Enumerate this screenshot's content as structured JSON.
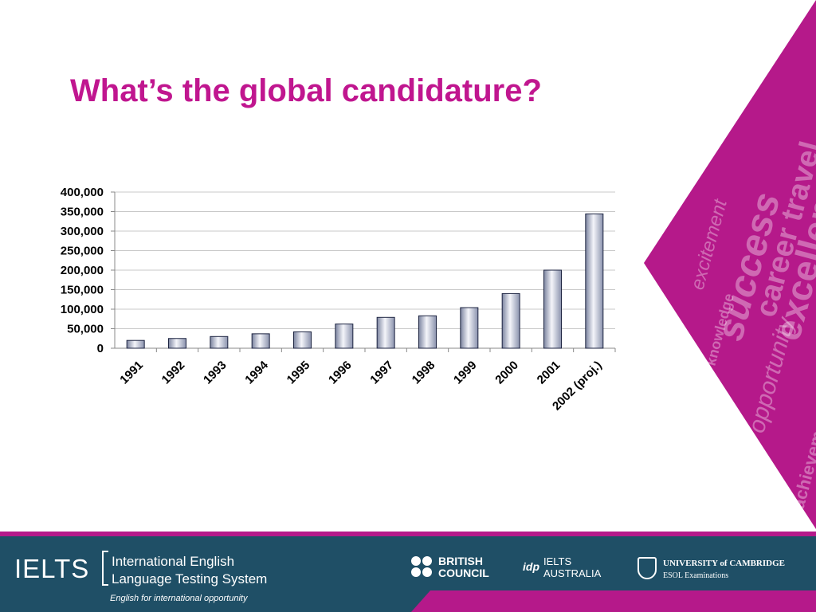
{
  "slide": {
    "title": "What’s the global candidature?"
  },
  "chart_data": {
    "type": "bar",
    "categories": [
      "1991",
      "1992",
      "1993",
      "1994",
      "1995",
      "1996",
      "1997",
      "1998",
      "1999",
      "2000",
      "2001",
      "2002 (proj.)"
    ],
    "values": [
      20000,
      25000,
      30000,
      37000,
      42000,
      62000,
      79000,
      83000,
      104000,
      140000,
      200000,
      344000
    ],
    "ylim": [
      0,
      400000
    ],
    "yticks": [
      0,
      50000,
      100000,
      150000,
      200000,
      250000,
      300000,
      350000,
      400000
    ],
    "ytick_labels": [
      "0",
      "50,000",
      "100,000",
      "150,000",
      "200,000",
      "250,000",
      "300,000",
      "350,000",
      "400,000"
    ],
    "grid": true,
    "legend": "none",
    "bar_color": "#d4d8e6"
  },
  "decoration": {
    "words": [
      "excellence",
      "career travel",
      "success",
      "excitement",
      "opportunity",
      "knowledge",
      "achievement"
    ]
  },
  "footer": {
    "ielts_logo": "IELTS",
    "ielts_line1": "International English",
    "ielts_line2": "Language Testing System",
    "ielts_tagline": "English for international opportunity",
    "british_council_line1": "BRITISH",
    "british_council_line2": "COUNCIL",
    "idp_mark": "idp",
    "ielts_australia_line1": "IELTS",
    "ielts_australia_line2": "AUSTRALIA",
    "cambridge_line1": "UNIVERSITY of CAMBRIDGE",
    "cambridge_line2": "ESOL Examinations"
  },
  "colors": {
    "accent": "#c0168f",
    "footer": "#1f4f66",
    "wedge": "#b5198a"
  }
}
